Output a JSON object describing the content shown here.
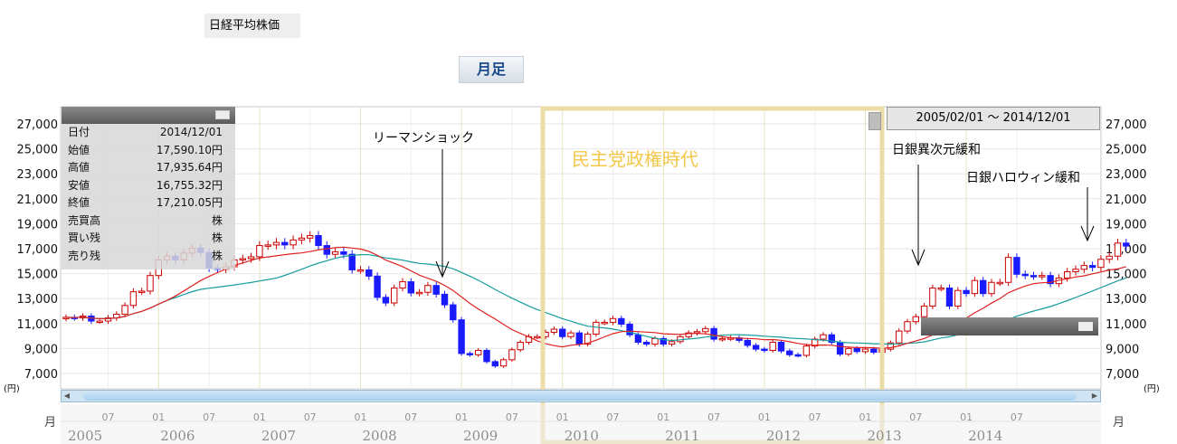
{
  "page": {
    "title_tab": "日経平均株価",
    "period_button": "月足",
    "range_label": "2005/02/01 〜 2014/12/01",
    "unit_left": "(円)",
    "unit_right": "(円)",
    "month_label_left": "月",
    "month_label_right": "月"
  },
  "info_panel": {
    "rows": [
      {
        "label": "日付",
        "value": "2014/12/01"
      },
      {
        "label": "始値",
        "value": "17,590.10円"
      },
      {
        "label": "高値",
        "value": "17,935.64円"
      },
      {
        "label": "安値",
        "value": "16,755.32円"
      },
      {
        "label": "終値",
        "value": "17,210.05円"
      },
      {
        "label": "売買高",
        "value": "株"
      },
      {
        "label": "買い残",
        "value": "株"
      },
      {
        "label": "売り残",
        "value": "株"
      }
    ]
  },
  "annotations": {
    "lehman": "リーマンショック",
    "dpj": "民主党政権時代",
    "boj_qqe": "日銀異次元緩和",
    "boj_halloween": "日銀ハロウィン緩和"
  },
  "chart_data": {
    "type": "candlestick",
    "ylim": [
      6000,
      28000
    ],
    "y_ticks": [
      "27,000",
      "25,000",
      "23,000",
      "21,000",
      "19,000",
      "17,000",
      "15,000",
      "13,000",
      "11,000",
      "9,000",
      "7,000"
    ],
    "x_month_ticks": [
      "07",
      "01",
      "07",
      "01",
      "07",
      "01",
      "07",
      "01",
      "07",
      "01",
      "07",
      "01",
      "07",
      "01",
      "07",
      "01",
      "07",
      "01",
      "07"
    ],
    "x_year_ticks": [
      "2005",
      "2006",
      "2007",
      "2008",
      "2009",
      "2010",
      "2011",
      "2012",
      "2013",
      "2014"
    ],
    "colors": {
      "up": "#cc0000",
      "down": "#1a1aff",
      "ma_short": "#e02020",
      "ma_long": "#169c9c",
      "highlight": "#ecdca8"
    },
    "closes": [
      11500,
      11450,
      11600,
      11200,
      11200,
      11450,
      11750,
      12450,
      13550,
      13600,
      14850,
      16100,
      16400,
      16100,
      16650,
      17050,
      16700,
      15450,
      15350,
      15550,
      16100,
      16200,
      16350,
      17250,
      17300,
      17500,
      17300,
      17700,
      17850,
      18050,
      17250,
      16550,
      16750,
      16550,
      15300,
      15300,
      14800,
      13100,
      12650,
      13850,
      14350,
      13450,
      13500,
      14050,
      13350,
      12500,
      11300,
      8600,
      8500,
      8850,
      7950,
      7600,
      8100,
      8900,
      9500,
      9950,
      9950,
      10300,
      10550,
      9950,
      10250,
      9350,
      10150,
      11100,
      11100,
      11400,
      10950,
      10100,
      9500,
      9350,
      9800,
      9350,
      9550,
      9950,
      10250,
      10350,
      10600,
      9750,
      9800,
      9850,
      9650,
      9250,
      8950,
      8850,
      9500,
      8800,
      8500,
      8450,
      9200,
      9750,
      10100,
      9500,
      8550,
      9000,
      8750,
      8950,
      8700,
      8950,
      9450,
      10400,
      11150,
      11550,
      12400,
      13850,
      13850,
      12400,
      13650,
      13400,
      14450,
      13400,
      14300,
      14300,
      16300,
      14950,
      14850,
      14800,
      14850,
      14200,
      14650,
      15150,
      15350,
      15650,
      15500,
      16150,
      16400,
      17450,
      17210
    ],
    "ma_short": [],
    "ma_long": []
  }
}
